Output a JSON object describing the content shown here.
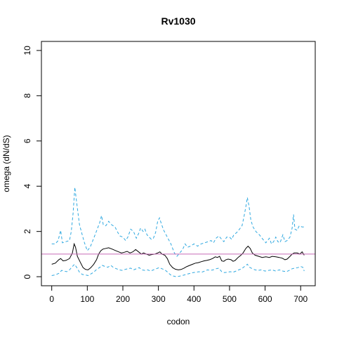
{
  "chart_data": {
    "type": "line",
    "title": "Rv1030",
    "xlabel": "codon",
    "ylabel": "omega (dN/dS)",
    "xlim": [
      -29,
      741
    ],
    "ylim": [
      -0.4,
      10.4
    ],
    "xticks": [
      0,
      100,
      200,
      300,
      400,
      500,
      600,
      700
    ],
    "yticks": [
      0,
      2,
      4,
      6,
      8,
      10
    ],
    "grid": false,
    "reference_line": {
      "y": 1,
      "color": "#c86bb8"
    },
    "series": [
      {
        "role": "upper",
        "color": "#2ea8e0",
        "style": "dashed",
        "points": [
          [
            0,
            1.45
          ],
          [
            10,
            1.45
          ],
          [
            18,
            1.6
          ],
          [
            25,
            2.05
          ],
          [
            30,
            1.5
          ],
          [
            40,
            1.55
          ],
          [
            50,
            1.6
          ],
          [
            55,
            2.0
          ],
          [
            60,
            2.8
          ],
          [
            65,
            3.95
          ],
          [
            70,
            3.3
          ],
          [
            78,
            2.3
          ],
          [
            85,
            1.9
          ],
          [
            92,
            1.5
          ],
          [
            100,
            1.15
          ],
          [
            108,
            1.3
          ],
          [
            118,
            1.7
          ],
          [
            128,
            2.1
          ],
          [
            135,
            2.4
          ],
          [
            140,
            2.7
          ],
          [
            145,
            2.3
          ],
          [
            152,
            2.25
          ],
          [
            160,
            2.45
          ],
          [
            168,
            2.3
          ],
          [
            178,
            2.2
          ],
          [
            186,
            1.95
          ],
          [
            192,
            1.8
          ],
          [
            200,
            1.75
          ],
          [
            208,
            1.6
          ],
          [
            214,
            1.75
          ],
          [
            222,
            2.1
          ],
          [
            230,
            2.0
          ],
          [
            238,
            1.7
          ],
          [
            244,
            1.9
          ],
          [
            250,
            2.15
          ],
          [
            257,
            2.0
          ],
          [
            262,
            2.1
          ],
          [
            268,
            1.85
          ],
          [
            274,
            1.75
          ],
          [
            280,
            1.65
          ],
          [
            286,
            1.7
          ],
          [
            292,
            1.95
          ],
          [
            298,
            2.45
          ],
          [
            303,
            2.6
          ],
          [
            308,
            2.35
          ],
          [
            315,
            2.05
          ],
          [
            325,
            1.75
          ],
          [
            335,
            1.45
          ],
          [
            345,
            1.05
          ],
          [
            352,
            0.9
          ],
          [
            360,
            1.05
          ],
          [
            368,
            1.2
          ],
          [
            375,
            1.45
          ],
          [
            382,
            1.3
          ],
          [
            390,
            1.35
          ],
          [
            400,
            1.45
          ],
          [
            410,
            1.35
          ],
          [
            420,
            1.45
          ],
          [
            430,
            1.5
          ],
          [
            440,
            1.55
          ],
          [
            448,
            1.6
          ],
          [
            455,
            1.5
          ],
          [
            462,
            1.7
          ],
          [
            470,
            1.8
          ],
          [
            478,
            1.65
          ],
          [
            484,
            1.55
          ],
          [
            492,
            1.75
          ],
          [
            500,
            1.75
          ],
          [
            506,
            1.65
          ],
          [
            512,
            1.85
          ],
          [
            520,
            1.95
          ],
          [
            528,
            2.1
          ],
          [
            535,
            2.25
          ],
          [
            540,
            2.6
          ],
          [
            546,
            3.1
          ],
          [
            550,
            3.5
          ],
          [
            555,
            3.1
          ],
          [
            560,
            2.5
          ],
          [
            566,
            2.2
          ],
          [
            574,
            2.0
          ],
          [
            584,
            1.85
          ],
          [
            594,
            1.65
          ],
          [
            602,
            1.5
          ],
          [
            612,
            1.7
          ],
          [
            618,
            1.45
          ],
          [
            624,
            1.55
          ],
          [
            630,
            1.75
          ],
          [
            636,
            1.55
          ],
          [
            642,
            1.5
          ],
          [
            650,
            1.85
          ],
          [
            656,
            1.55
          ],
          [
            662,
            1.6
          ],
          [
            670,
            1.75
          ],
          [
            676,
            2.15
          ],
          [
            680,
            2.75
          ],
          [
            684,
            2.1
          ],
          [
            690,
            2.05
          ],
          [
            696,
            2.25
          ],
          [
            704,
            2.2
          ],
          [
            710,
            2.2
          ]
        ]
      },
      {
        "role": "estimate",
        "color": "#000000",
        "style": "solid",
        "points": [
          [
            0,
            0.55
          ],
          [
            10,
            0.6
          ],
          [
            20,
            0.75
          ],
          [
            25,
            0.8
          ],
          [
            32,
            0.7
          ],
          [
            40,
            0.72
          ],
          [
            50,
            0.8
          ],
          [
            58,
            1.05
          ],
          [
            63,
            1.45
          ],
          [
            67,
            1.3
          ],
          [
            72,
            0.9
          ],
          [
            80,
            0.65
          ],
          [
            88,
            0.4
          ],
          [
            95,
            0.32
          ],
          [
            102,
            0.3
          ],
          [
            110,
            0.4
          ],
          [
            118,
            0.55
          ],
          [
            126,
            0.75
          ],
          [
            132,
            1.0
          ],
          [
            138,
            1.15
          ],
          [
            144,
            1.22
          ],
          [
            152,
            1.25
          ],
          [
            160,
            1.28
          ],
          [
            170,
            1.22
          ],
          [
            180,
            1.15
          ],
          [
            188,
            1.1
          ],
          [
            196,
            1.05
          ],
          [
            204,
            1.08
          ],
          [
            212,
            1.12
          ],
          [
            220,
            1.05
          ],
          [
            228,
            1.1
          ],
          [
            236,
            1.2
          ],
          [
            244,
            1.1
          ],
          [
            252,
            1.0
          ],
          [
            258,
            1.05
          ],
          [
            266,
            1.0
          ],
          [
            274,
            0.95
          ],
          [
            282,
            0.98
          ],
          [
            290,
            1.0
          ],
          [
            298,
            1.05
          ],
          [
            304,
            1.1
          ],
          [
            310,
            1.0
          ],
          [
            318,
            0.95
          ],
          [
            325,
            0.8
          ],
          [
            332,
            0.55
          ],
          [
            340,
            0.4
          ],
          [
            348,
            0.33
          ],
          [
            356,
            0.3
          ],
          [
            364,
            0.32
          ],
          [
            372,
            0.38
          ],
          [
            380,
            0.45
          ],
          [
            388,
            0.5
          ],
          [
            396,
            0.55
          ],
          [
            404,
            0.6
          ],
          [
            412,
            0.62
          ],
          [
            420,
            0.66
          ],
          [
            428,
            0.7
          ],
          [
            436,
            0.72
          ],
          [
            444,
            0.75
          ],
          [
            452,
            0.8
          ],
          [
            460,
            0.88
          ],
          [
            466,
            0.85
          ],
          [
            472,
            0.9
          ],
          [
            478,
            0.7
          ],
          [
            484,
            0.68
          ],
          [
            490,
            0.75
          ],
          [
            496,
            0.78
          ],
          [
            504,
            0.75
          ],
          [
            510,
            0.68
          ],
          [
            516,
            0.72
          ],
          [
            524,
            0.85
          ],
          [
            532,
            0.95
          ],
          [
            538,
            1.05
          ],
          [
            546,
            1.25
          ],
          [
            552,
            1.35
          ],
          [
            558,
            1.25
          ],
          [
            564,
            1.05
          ],
          [
            572,
            0.95
          ],
          [
            582,
            0.9
          ],
          [
            592,
            0.85
          ],
          [
            602,
            0.88
          ],
          [
            612,
            0.85
          ],
          [
            620,
            0.9
          ],
          [
            630,
            0.88
          ],
          [
            640,
            0.85
          ],
          [
            648,
            0.82
          ],
          [
            656,
            0.75
          ],
          [
            662,
            0.78
          ],
          [
            670,
            0.9
          ],
          [
            676,
            1.0
          ],
          [
            682,
            1.05
          ],
          [
            690,
            1.05
          ],
          [
            698,
            1.0
          ],
          [
            704,
            1.1
          ],
          [
            710,
            0.95
          ]
        ]
      },
      {
        "role": "lower",
        "color": "#2ea8e0",
        "style": "dashed",
        "points": [
          [
            0,
            0.05
          ],
          [
            10,
            0.08
          ],
          [
            20,
            0.15
          ],
          [
            28,
            0.28
          ],
          [
            35,
            0.25
          ],
          [
            42,
            0.22
          ],
          [
            50,
            0.3
          ],
          [
            58,
            0.45
          ],
          [
            64,
            0.55
          ],
          [
            70,
            0.42
          ],
          [
            78,
            0.2
          ],
          [
            86,
            0.1
          ],
          [
            94,
            0.08
          ],
          [
            102,
            0.05
          ],
          [
            110,
            0.12
          ],
          [
            118,
            0.2
          ],
          [
            126,
            0.32
          ],
          [
            134,
            0.4
          ],
          [
            142,
            0.5
          ],
          [
            150,
            0.45
          ],
          [
            158,
            0.42
          ],
          [
            166,
            0.5
          ],
          [
            174,
            0.4
          ],
          [
            182,
            0.35
          ],
          [
            190,
            0.3
          ],
          [
            198,
            0.28
          ],
          [
            206,
            0.32
          ],
          [
            214,
            0.35
          ],
          [
            222,
            0.38
          ],
          [
            230,
            0.3
          ],
          [
            238,
            0.35
          ],
          [
            246,
            0.4
          ],
          [
            254,
            0.3
          ],
          [
            262,
            0.28
          ],
          [
            270,
            0.3
          ],
          [
            278,
            0.25
          ],
          [
            286,
            0.3
          ],
          [
            294,
            0.35
          ],
          [
            302,
            0.4
          ],
          [
            310,
            0.35
          ],
          [
            318,
            0.3
          ],
          [
            326,
            0.2
          ],
          [
            334,
            0.08
          ],
          [
            342,
            0.03
          ],
          [
            350,
            0.0
          ],
          [
            358,
            0.02
          ],
          [
            366,
            0.05
          ],
          [
            374,
            0.08
          ],
          [
            382,
            0.12
          ],
          [
            390,
            0.15
          ],
          [
            398,
            0.18
          ],
          [
            406,
            0.2
          ],
          [
            414,
            0.22
          ],
          [
            422,
            0.2
          ],
          [
            430,
            0.25
          ],
          [
            438,
            0.3
          ],
          [
            446,
            0.28
          ],
          [
            454,
            0.3
          ],
          [
            462,
            0.35
          ],
          [
            470,
            0.38
          ],
          [
            478,
            0.22
          ],
          [
            486,
            0.18
          ],
          [
            494,
            0.2
          ],
          [
            502,
            0.22
          ],
          [
            510,
            0.2
          ],
          [
            518,
            0.25
          ],
          [
            526,
            0.3
          ],
          [
            534,
            0.35
          ],
          [
            542,
            0.45
          ],
          [
            550,
            0.55
          ],
          [
            556,
            0.42
          ],
          [
            564,
            0.35
          ],
          [
            572,
            0.3
          ],
          [
            580,
            0.28
          ],
          [
            590,
            0.3
          ],
          [
            600,
            0.25
          ],
          [
            610,
            0.28
          ],
          [
            620,
            0.3
          ],
          [
            630,
            0.25
          ],
          [
            640,
            0.3
          ],
          [
            650,
            0.25
          ],
          [
            660,
            0.22
          ],
          [
            668,
            0.28
          ],
          [
            676,
            0.35
          ],
          [
            684,
            0.38
          ],
          [
            692,
            0.4
          ],
          [
            700,
            0.45
          ],
          [
            706,
            0.42
          ],
          [
            710,
            0.25
          ]
        ]
      }
    ]
  }
}
